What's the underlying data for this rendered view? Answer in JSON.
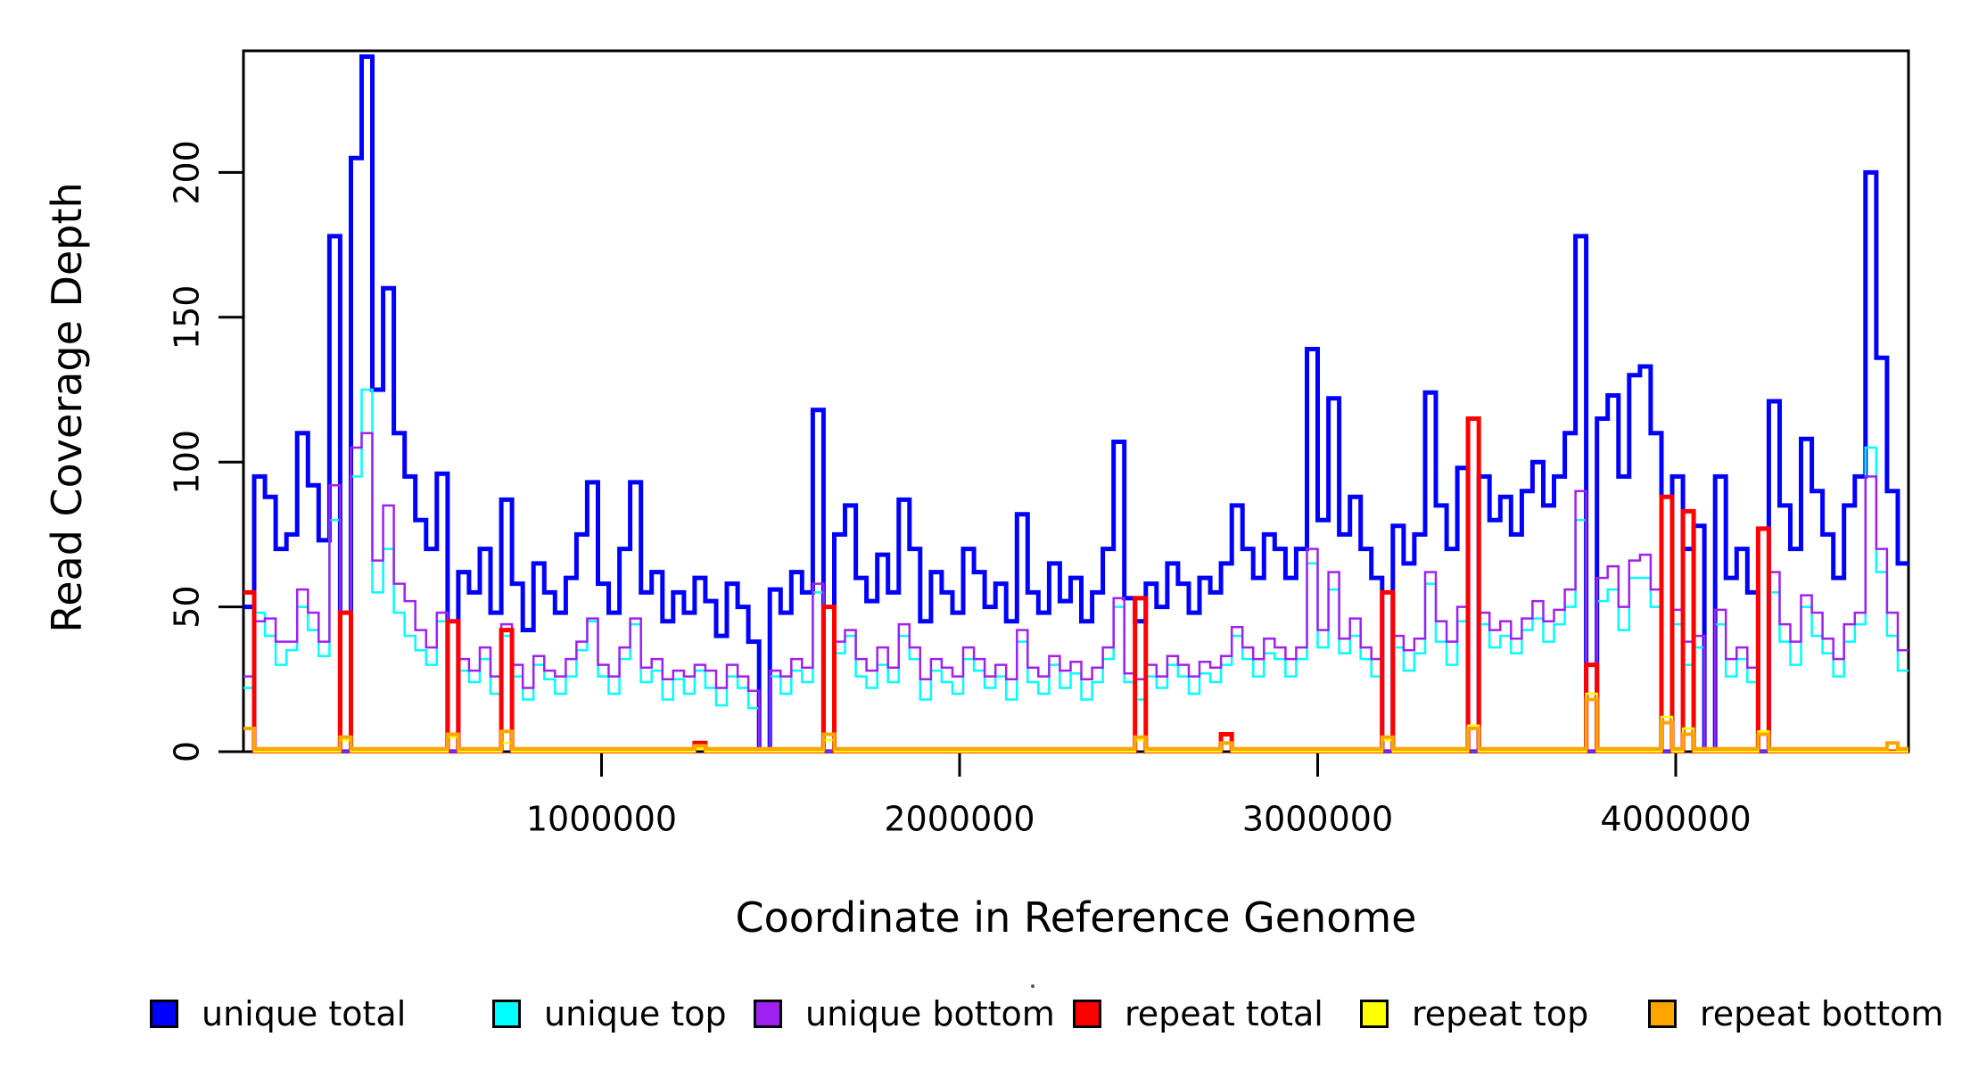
{
  "chart_data": {
    "type": "step-line",
    "title": "",
    "xlabel": "Coordinate in Reference Genome",
    "ylabel": "Read Coverage Depth",
    "xlim": [
      0,
      4650000
    ],
    "ylim": [
      0,
      242
    ],
    "grid": false,
    "legend_position": "bottom",
    "x_ticks": [
      1000000,
      2000000,
      3000000,
      4000000
    ],
    "x_tick_labels": [
      "1000000",
      "2000000",
      "3000000",
      "4000000"
    ],
    "y_ticks": [
      0,
      50,
      100,
      150,
      200
    ],
    "y_tick_labels": [
      "0",
      "50",
      "100",
      "150",
      "200"
    ],
    "x_start": 0,
    "bin_size": 30000,
    "frame_color": "#000000",
    "series": [
      {
        "name": "unique total",
        "color": "#0000FF",
        "line_width": 5,
        "values": [
          50,
          95,
          88,
          70,
          75,
          110,
          92,
          73,
          178,
          0,
          205,
          240,
          125,
          160,
          110,
          95,
          80,
          70,
          96,
          0,
          62,
          55,
          70,
          48,
          87,
          58,
          42,
          65,
          55,
          48,
          60,
          75,
          93,
          58,
          48,
          70,
          93,
          55,
          62,
          45,
          55,
          48,
          60,
          52,
          40,
          58,
          50,
          38,
          0,
          56,
          48,
          62,
          55,
          118,
          0,
          75,
          85,
          60,
          52,
          68,
          55,
          87,
          70,
          45,
          62,
          55,
          48,
          70,
          62,
          50,
          58,
          45,
          82,
          55,
          48,
          65,
          52,
          60,
          45,
          55,
          70,
          107,
          53,
          45,
          58,
          50,
          65,
          58,
          48,
          60,
          55,
          65,
          85,
          70,
          60,
          75,
          70,
          60,
          70,
          139,
          80,
          122,
          75,
          88,
          70,
          60,
          0,
          78,
          65,
          75,
          124,
          85,
          70,
          98,
          0,
          95,
          80,
          88,
          75,
          90,
          100,
          85,
          95,
          110,
          178,
          0,
          115,
          123,
          95,
          130,
          133,
          110,
          0,
          95,
          70,
          78,
          0,
          95,
          60,
          70,
          55,
          0,
          121,
          85,
          70,
          108,
          90,
          75,
          60,
          85,
          95,
          200,
          136,
          90,
          65
        ]
      },
      {
        "name": "unique top",
        "color": "#00FFFF",
        "line_width": 2.5,
        "values": [
          22,
          48,
          40,
          30,
          35,
          50,
          42,
          33,
          80,
          0,
          95,
          125,
          55,
          70,
          48,
          40,
          35,
          30,
          45,
          0,
          28,
          24,
          32,
          20,
          40,
          26,
          18,
          30,
          25,
          20,
          26,
          35,
          45,
          26,
          20,
          32,
          44,
          24,
          28,
          18,
          25,
          20,
          28,
          22,
          16,
          26,
          22,
          15,
          0,
          26,
          20,
          28,
          24,
          55,
          0,
          34,
          40,
          26,
          22,
          30,
          24,
          40,
          32,
          18,
          28,
          24,
          20,
          32,
          28,
          22,
          26,
          18,
          38,
          24,
          20,
          30,
          22,
          27,
          18,
          24,
          32,
          50,
          24,
          18,
          26,
          22,
          30,
          26,
          20,
          27,
          24,
          30,
          40,
          32,
          26,
          34,
          32,
          26,
          32,
          65,
          36,
          56,
          34,
          40,
          32,
          26,
          0,
          36,
          28,
          34,
          58,
          38,
          30,
          45,
          0,
          44,
          36,
          40,
          34,
          42,
          46,
          38,
          44,
          50,
          80,
          0,
          52,
          56,
          42,
          60,
          60,
          50,
          0,
          44,
          30,
          36,
          0,
          44,
          26,
          32,
          24,
          0,
          55,
          38,
          30,
          50,
          40,
          34,
          26,
          38,
          44,
          105,
          62,
          40,
          28
        ]
      },
      {
        "name": "unique bottom",
        "color": "#A020F0",
        "line_width": 2.5,
        "values": [
          26,
          45,
          46,
          38,
          38,
          56,
          48,
          38,
          92,
          0,
          105,
          110,
          66,
          85,
          58,
          52,
          42,
          36,
          48,
          0,
          32,
          28,
          36,
          26,
          44,
          30,
          22,
          33,
          28,
          26,
          32,
          38,
          46,
          30,
          26,
          36,
          46,
          29,
          32,
          25,
          28,
          26,
          30,
          28,
          22,
          30,
          26,
          21,
          0,
          28,
          26,
          32,
          29,
          58,
          0,
          38,
          42,
          32,
          28,
          36,
          29,
          44,
          36,
          25,
          32,
          29,
          26,
          36,
          32,
          26,
          30,
          25,
          42,
          29,
          26,
          33,
          28,
          31,
          25,
          29,
          36,
          53,
          27,
          25,
          30,
          26,
          33,
          30,
          26,
          31,
          29,
          33,
          43,
          36,
          32,
          39,
          36,
          32,
          36,
          70,
          42,
          62,
          39,
          46,
          36,
          32,
          0,
          40,
          35,
          39,
          62,
          45,
          38,
          50,
          0,
          48,
          42,
          45,
          39,
          46,
          52,
          45,
          49,
          56,
          90,
          0,
          60,
          64,
          50,
          66,
          68,
          56,
          0,
          49,
          38,
          40,
          0,
          49,
          32,
          36,
          29,
          0,
          62,
          44,
          38,
          54,
          48,
          39,
          32,
          44,
          48,
          95,
          70,
          48,
          35
        ]
      },
      {
        "name": "repeat total",
        "color": "#FF0000",
        "line_width": 5,
        "values": [
          55,
          0,
          0,
          0,
          0,
          0,
          0,
          0,
          0,
          48,
          0,
          0,
          0,
          0,
          0,
          0,
          0,
          0,
          0,
          45,
          0,
          0,
          0,
          0,
          42,
          0,
          0,
          0,
          0,
          0,
          0,
          0,
          0,
          0,
          0,
          0,
          0,
          0,
          0,
          0,
          0,
          0,
          3,
          0,
          0,
          0,
          0,
          0,
          0,
          0,
          0,
          0,
          0,
          0,
          50,
          0,
          0,
          0,
          0,
          0,
          0,
          0,
          0,
          0,
          0,
          0,
          0,
          0,
          0,
          0,
          0,
          0,
          0,
          0,
          0,
          0,
          0,
          0,
          0,
          0,
          0,
          0,
          0,
          53,
          0,
          0,
          0,
          0,
          0,
          0,
          0,
          6,
          0,
          0,
          0,
          0,
          0,
          0,
          0,
          0,
          0,
          0,
          0,
          0,
          0,
          0,
          55,
          0,
          0,
          0,
          0,
          0,
          0,
          0,
          115,
          0,
          0,
          0,
          0,
          0,
          0,
          0,
          0,
          0,
          0,
          30,
          0,
          0,
          0,
          0,
          0,
          0,
          88,
          0,
          83,
          0,
          0,
          0,
          0,
          0,
          0,
          77,
          0,
          0,
          0,
          0,
          0,
          0,
          0,
          0,
          0,
          0,
          0,
          0,
          0
        ]
      },
      {
        "name": "repeat top",
        "color": "#FFFF00",
        "line_width": 2.5,
        "values": [
          8,
          0,
          0,
          0,
          0,
          0,
          0,
          0,
          0,
          4,
          0,
          0,
          0,
          0,
          0,
          0,
          0,
          0,
          0,
          5,
          0,
          0,
          0,
          0,
          3,
          0,
          0,
          0,
          0,
          0,
          0,
          0,
          0,
          0,
          0,
          0,
          0,
          0,
          0,
          0,
          0,
          0,
          1,
          0,
          0,
          0,
          0,
          0,
          0,
          0,
          0,
          0,
          0,
          0,
          4,
          0,
          0,
          0,
          0,
          0,
          0,
          0,
          0,
          0,
          0,
          0,
          0,
          0,
          0,
          0,
          0,
          0,
          0,
          0,
          0,
          0,
          0,
          0,
          0,
          0,
          0,
          0,
          0,
          4,
          0,
          0,
          0,
          0,
          0,
          0,
          0,
          3,
          0,
          0,
          0,
          0,
          0,
          0,
          0,
          0,
          0,
          0,
          0,
          0,
          0,
          0,
          4,
          0,
          0,
          0,
          0,
          0,
          0,
          0,
          9,
          0,
          0,
          0,
          0,
          0,
          0,
          0,
          0,
          0,
          0,
          20,
          0,
          0,
          0,
          0,
          0,
          0,
          12,
          0,
          8,
          0,
          0,
          0,
          0,
          0,
          0,
          7,
          0,
          0,
          0,
          0,
          0,
          0,
          0,
          0,
          0,
          0,
          0,
          0,
          0
        ]
      },
      {
        "name": "repeat bottom",
        "color": "#FFA500",
        "line_width": 4,
        "values": [
          8,
          1,
          1,
          1,
          1,
          1,
          1,
          1,
          1,
          5,
          1,
          1,
          1,
          1,
          1,
          1,
          1,
          1,
          1,
          6,
          1,
          1,
          1,
          1,
          7,
          1,
          1,
          1,
          1,
          1,
          1,
          1,
          1,
          1,
          1,
          1,
          1,
          1,
          1,
          1,
          1,
          1,
          2,
          1,
          1,
          1,
          1,
          1,
          1,
          1,
          1,
          1,
          1,
          1,
          6,
          1,
          1,
          1,
          1,
          1,
          1,
          1,
          1,
          1,
          1,
          1,
          1,
          1,
          1,
          1,
          1,
          1,
          1,
          1,
          1,
          1,
          1,
          1,
          1,
          1,
          1,
          1,
          1,
          5,
          1,
          1,
          1,
          1,
          1,
          1,
          1,
          3,
          1,
          1,
          1,
          1,
          1,
          1,
          1,
          1,
          1,
          1,
          1,
          1,
          1,
          1,
          5,
          1,
          1,
          1,
          1,
          1,
          1,
          1,
          8,
          1,
          1,
          1,
          1,
          1,
          1,
          1,
          1,
          1,
          1,
          18,
          1,
          1,
          1,
          1,
          1,
          1,
          10,
          1,
          6,
          1,
          1,
          1,
          1,
          1,
          1,
          6,
          1,
          1,
          1,
          1,
          1,
          1,
          1,
          1,
          1,
          1,
          1,
          3,
          1
        ]
      }
    ]
  }
}
